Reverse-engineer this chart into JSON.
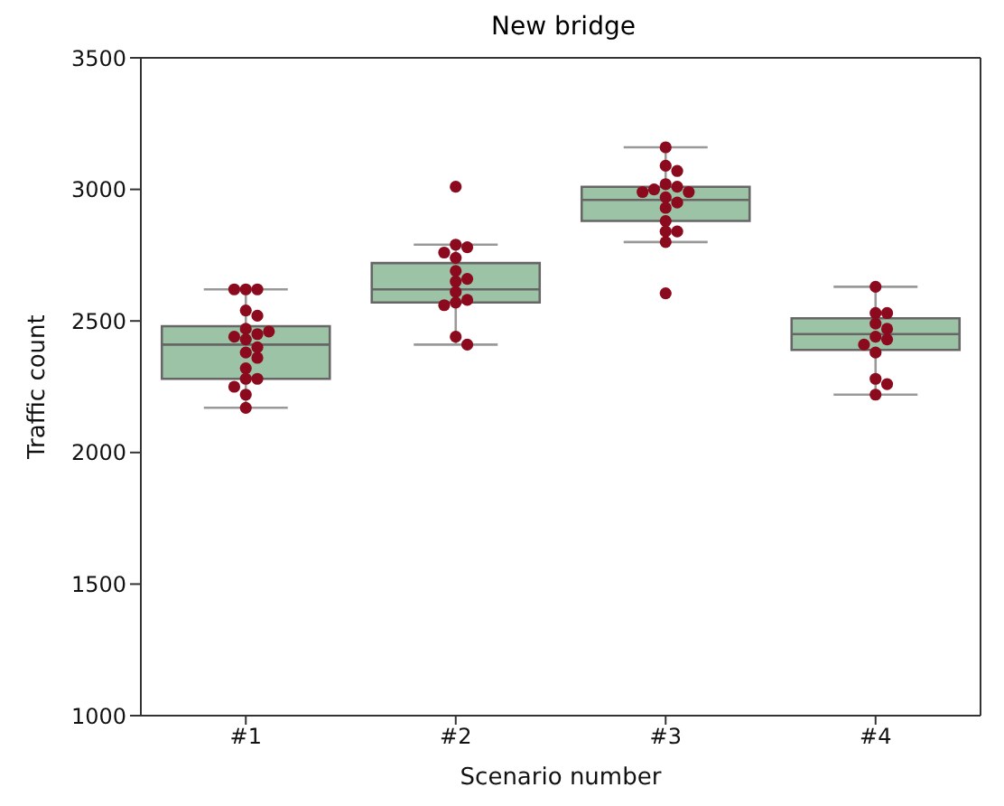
{
  "chart_data": {
    "type": "box",
    "title": "New bridge",
    "xlabel": "Scenario number",
    "ylabel": "Traffic count",
    "categories": [
      "#1",
      "#2",
      "#3",
      "#4"
    ],
    "color": "#9dc3a6",
    "boxes": [
      {
        "low": 2170,
        "q1": 2280,
        "median": 2410,
        "q3": 2480,
        "high": 2620
      },
      {
        "low": 2410,
        "q1": 2570,
        "median": 2620,
        "q3": 2720,
        "high": 2790
      },
      {
        "low": 2800,
        "q1": 2880,
        "median": 2960,
        "q3": 3010,
        "high": 3160
      },
      {
        "low": 2220,
        "q1": 2390,
        "median": 2450,
        "q3": 2510,
        "high": 2630
      }
    ],
    "series": [
      {
        "type": "scatter",
        "color": "#8b0a1e",
        "x": [
          "#1",
          "#1",
          "#1",
          "#1",
          "#1",
          "#1",
          "#1",
          "#1",
          "#1",
          "#1",
          "#1",
          "#1",
          "#1",
          "#1",
          "#1",
          "#1",
          "#1",
          "#1",
          "#1",
          "#2",
          "#2",
          "#2",
          "#2",
          "#2",
          "#2",
          "#2",
          "#2",
          "#2",
          "#2",
          "#2",
          "#2",
          "#2",
          "#2",
          "#3",
          "#3",
          "#3",
          "#3",
          "#3",
          "#3",
          "#3",
          "#3",
          "#3",
          "#3",
          "#3",
          "#3",
          "#3",
          "#3",
          "#3",
          "#3",
          "#4",
          "#4",
          "#4",
          "#4",
          "#4",
          "#4",
          "#4",
          "#4",
          "#4",
          "#4",
          "#4",
          "#4"
        ],
        "values": [
          2620,
          2620,
          2620,
          2540,
          2520,
          2470,
          2450,
          2440,
          2430,
          2380,
          2360,
          2320,
          2280,
          2280,
          2250,
          2220,
          2170,
          2460,
          2400,
          3010,
          2790,
          2780,
          2760,
          2740,
          2690,
          2660,
          2650,
          2610,
          2580,
          2570,
          2560,
          2440,
          2410,
          3160,
          3090,
          3070,
          3020,
          3010,
          3000,
          2990,
          2970,
          2950,
          2930,
          2880,
          2840,
          2840,
          2800,
          2990,
          2605,
          2630,
          2530,
          2530,
          2490,
          2470,
          2440,
          2430,
          2410,
          2380,
          2280,
          2260,
          2220
        ]
      }
    ],
    "ylim": [
      1000,
      3500
    ],
    "yticks": [
      1000,
      1500,
      2000,
      2500,
      3000,
      3500
    ],
    "marker": "circle"
  }
}
